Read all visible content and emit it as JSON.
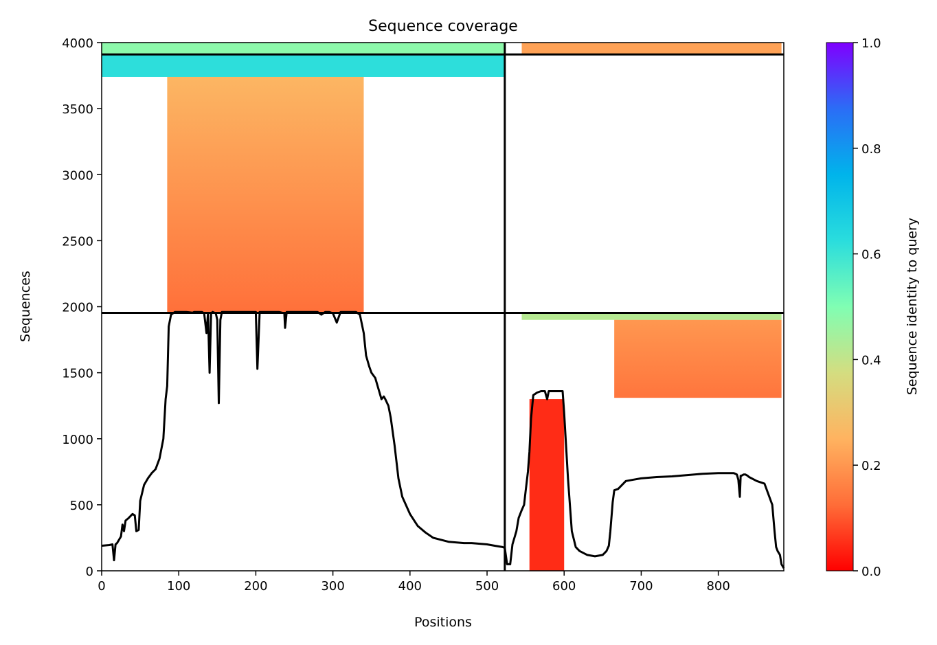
{
  "chart_data": {
    "type": "heatmap",
    "title": "Sequence coverage",
    "xlabel": "Positions",
    "ylabel": "Sequences",
    "xlim": [
      0,
      885
    ],
    "ylim": [
      0,
      4000
    ],
    "xticks": [
      0,
      100,
      200,
      300,
      400,
      500,
      600,
      700,
      800
    ],
    "yticks": [
      0,
      500,
      1000,
      1500,
      2000,
      2500,
      3000,
      3500,
      4000
    ],
    "grid": false,
    "colorbar": {
      "label": "Sequence identity to query",
      "range": [
        0,
        1
      ],
      "ticks": [
        0.0,
        0.2,
        0.4,
        0.6,
        0.8,
        1.0
      ],
      "colormap": "rainbow_r",
      "stops": [
        "#ff0000",
        "#ff6d38",
        "#ffb360",
        "#d4dd80",
        "#80feb3",
        "#2adddd",
        "#00b4eb",
        "#2b6df6",
        "#7f00ff"
      ]
    },
    "domain_boundaries": {
      "x": [
        523
      ],
      "y": [
        1953,
        3910
      ]
    },
    "coverage_blocks": [
      {
        "region": "chain 1, rows 3910-4000",
        "x_range": [
          0,
          523
        ],
        "y_range": [
          3910,
          4000
        ],
        "identity": 0.48
      },
      {
        "region": "chain 2, rows 3910-4000",
        "x_range": [
          545,
          882
        ],
        "y_range": [
          3910,
          4000
        ],
        "identity": 0.22
      },
      {
        "region": "chain 1, rows 3740-3910",
        "x_range": [
          0,
          523
        ],
        "y_range": [
          3740,
          3910
        ],
        "identity": 0.62
      },
      {
        "region": "chain 1, rows 1953-3740",
        "x_range": [
          85,
          340
        ],
        "y_range": [
          1953,
          3740
        ],
        "identity_top": 0.26,
        "identity_bottom": 0.13
      },
      {
        "region": "chain 2, rows 1900-1953",
        "x_range": [
          545,
          882
        ],
        "y_range": [
          1900,
          1953
        ],
        "identity": 0.42
      },
      {
        "region": "chain 2, rows 1310-1900",
        "x_range": [
          665,
          882
        ],
        "y_range": [
          1310,
          1900
        ],
        "identity_top": 0.2,
        "identity_bottom": 0.14
      },
      {
        "region": "chain 2, rows 0-1300",
        "x_range": [
          555,
          600
        ],
        "y_range": [
          0,
          1300
        ],
        "identity": 0.05
      }
    ],
    "series": [
      {
        "type": "line",
        "color": "#000000",
        "x": [
          0,
          10,
          14,
          16,
          18,
          20,
          25,
          27,
          29,
          31,
          35,
          40,
          43,
          45,
          48,
          50,
          55,
          60,
          65,
          70,
          75,
          80,
          83,
          85,
          87,
          90,
          95,
          100,
          110,
          118,
          120,
          125,
          130,
          133,
          136,
          138,
          140,
          142,
          144,
          148,
          150,
          152,
          154,
          156,
          160,
          170,
          180,
          195,
          200,
          202,
          205,
          210,
          230,
          237,
          238,
          240,
          250,
          280,
          285,
          290,
          295,
          300,
          305,
          310,
          320,
          330,
          335,
          340,
          343,
          347,
          350,
          355,
          360,
          363,
          366,
          368,
          372,
          375,
          380,
          385,
          390,
          400,
          410,
          420,
          430,
          450,
          470,
          480,
          500,
          510,
          520,
          523,
          526,
          530,
          533,
          538,
          541,
          545,
          548,
          550,
          553,
          555,
          557,
          560,
          565,
          570,
          575,
          578,
          580,
          585,
          590,
          598,
          600,
          605,
          610,
          615,
          620,
          630,
          640,
          650,
          655,
          658,
          660,
          663,
          665,
          670,
          680,
          690,
          700,
          720,
          740,
          760,
          780,
          800,
          820,
          824,
          826,
          828,
          829,
          830,
          833,
          835,
          838,
          840,
          850,
          860,
          870,
          873,
          875,
          877,
          880,
          882,
          885
        ],
        "y": [
          190,
          195,
          200,
          80,
          200,
          210,
          260,
          350,
          300,
          380,
          400,
          430,
          420,
          300,
          310,
          530,
          650,
          700,
          740,
          770,
          850,
          1000,
          1300,
          1400,
          1850,
          1940,
          1960,
          1960,
          1960,
          1955,
          1960,
          1960,
          1960,
          1950,
          1800,
          1950,
          1500,
          1950,
          1960,
          1950,
          1900,
          1270,
          1900,
          1960,
          1960,
          1960,
          1960,
          1960,
          1960,
          1530,
          1960,
          1960,
          1960,
          1950,
          1840,
          1960,
          1960,
          1960,
          1940,
          1960,
          1960,
          1950,
          1880,
          1960,
          1960,
          1960,
          1940,
          1800,
          1630,
          1550,
          1500,
          1460,
          1360,
          1300,
          1320,
          1300,
          1250,
          1160,
          950,
          700,
          560,
          430,
          340,
          290,
          250,
          220,
          210,
          210,
          200,
          190,
          180,
          175,
          50,
          50,
          200,
          300,
          400,
          460,
          500,
          600,
          750,
          900,
          1150,
          1330,
          1350,
          1360,
          1360,
          1300,
          1360,
          1360,
          1360,
          1360,
          1200,
          700,
          300,
          180,
          150,
          120,
          110,
          120,
          150,
          190,
          300,
          520,
          610,
          620,
          680,
          690,
          700,
          710,
          715,
          725,
          735,
          740,
          740,
          730,
          690,
          560,
          720,
          720,
          730,
          730,
          720,
          710,
          680,
          660,
          500,
          300,
          180,
          150,
          120,
          50,
          20
        ]
      }
    ]
  }
}
